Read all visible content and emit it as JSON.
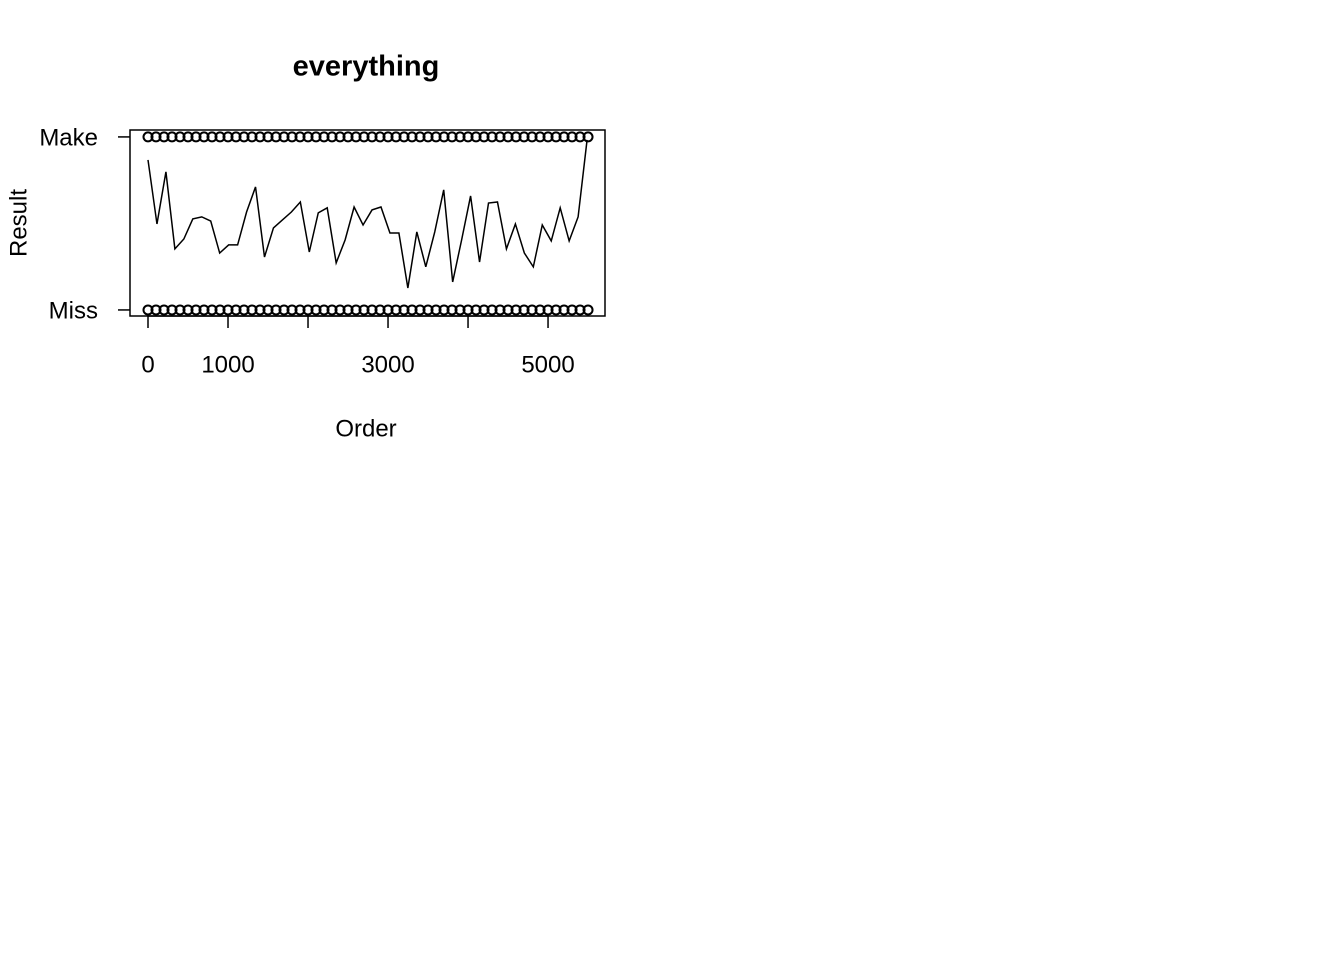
{
  "chart_data": {
    "type": "scatter",
    "title": "everything",
    "xlabel": "Order",
    "ylabel": "Result",
    "xlim": [
      -225,
      5712
    ],
    "ylim": [
      -0.035,
      1.04
    ],
    "xticks": [
      0,
      1000,
      {
        "value": 2000,
        "label": null
      },
      3000,
      {
        "value": 4000,
        "label": null
      },
      5000
    ],
    "yticks": [
      {
        "value": 0,
        "label": "Miss"
      },
      {
        "value": 1,
        "label": "Make"
      }
    ],
    "series": [
      {
        "mode": "points",
        "color": "#000000",
        "x": [
          0,
          100,
          200,
          300,
          400,
          500,
          600,
          700,
          800,
          900,
          1000,
          1100,
          1200,
          1300,
          1400,
          1500,
          1600,
          1700,
          1800,
          1900,
          2000,
          2100,
          2200,
          2300,
          2400,
          2500,
          2600,
          2700,
          2800,
          2900,
          3000,
          3100,
          3200,
          3300,
          3400,
          3500,
          3600,
          3700,
          3800,
          3900,
          4000,
          4100,
          4200,
          4300,
          4400,
          4500,
          4600,
          4700,
          4800,
          4900,
          5000,
          5100,
          5200,
          5300,
          5400,
          5500
        ],
        "values": [
          1,
          1,
          1,
          1,
          1,
          1,
          1,
          1,
          1,
          1,
          1,
          1,
          1,
          1,
          1,
          1,
          1,
          1,
          1,
          1,
          1,
          1,
          1,
          1,
          1,
          1,
          1,
          1,
          1,
          1,
          1,
          1,
          1,
          1,
          1,
          1,
          1,
          1,
          1,
          1,
          1,
          1,
          1,
          1,
          1,
          1,
          1,
          1,
          1,
          1,
          1,
          1,
          1,
          1,
          1,
          1
        ]
      },
      {
        "mode": "points",
        "color": "#000000",
        "x": [
          0,
          100,
          200,
          300,
          400,
          500,
          600,
          700,
          800,
          900,
          1000,
          1100,
          1200,
          1300,
          1400,
          1500,
          1600,
          1700,
          1800,
          1900,
          2000,
          2100,
          2200,
          2300,
          2400,
          2500,
          2600,
          2700,
          2800,
          2900,
          3000,
          3100,
          3200,
          3300,
          3400,
          3500,
          3600,
          3700,
          3800,
          3900,
          4000,
          4100,
          4200,
          4300,
          4400,
          4500,
          4600,
          4700,
          4800,
          4900,
          5000,
          5100,
          5200,
          5300,
          5400,
          5500
        ],
        "values": [
          0,
          0,
          0,
          0,
          0,
          0,
          0,
          0,
          0,
          0,
          0,
          0,
          0,
          0,
          0,
          0,
          0,
          0,
          0,
          0,
          0,
          0,
          0,
          0,
          0,
          0,
          0,
          0,
          0,
          0,
          0,
          0,
          0,
          0,
          0,
          0,
          0,
          0,
          0,
          0,
          0,
          0,
          0,
          0,
          0,
          0,
          0,
          0,
          0,
          0,
          0,
          0,
          0,
          0,
          0,
          0
        ]
      },
      {
        "mode": "line",
        "color": "#000000",
        "x": [
          0,
          112,
          224,
          336,
          448,
          560,
          672,
          784,
          896,
          1008,
          1120,
          1232,
          1344,
          1456,
          1568,
          1680,
          1792,
          1904,
          2016,
          2128,
          2240,
          2352,
          2464,
          2576,
          2688,
          2800,
          2912,
          3024,
          3136,
          3248,
          3360,
          3472,
          3584,
          3696,
          3808,
          3920,
          4032,
          4144,
          4256,
          4368,
          4480,
          4592,
          4704,
          4816,
          4928,
          5040,
          5152,
          5264,
          5376,
          5488
        ],
        "values": [
          0.867,
          0.497,
          0.798,
          0.353,
          0.41,
          0.526,
          0.538,
          0.514,
          0.329,
          0.376,
          0.376,
          0.566,
          0.711,
          0.306,
          0.474,
          0.52,
          0.566,
          0.624,
          0.335,
          0.561,
          0.59,
          0.272,
          0.405,
          0.595,
          0.491,
          0.578,
          0.595,
          0.445,
          0.445,
          0.127,
          0.451,
          0.249,
          0.451,
          0.694,
          0.162,
          0.405,
          0.659,
          0.277,
          0.618,
          0.624,
          0.353,
          0.497,
          0.329,
          0.249,
          0.491,
          0.399,
          0.59,
          0.399,
          0.538,
          0.983
        ]
      }
    ]
  }
}
